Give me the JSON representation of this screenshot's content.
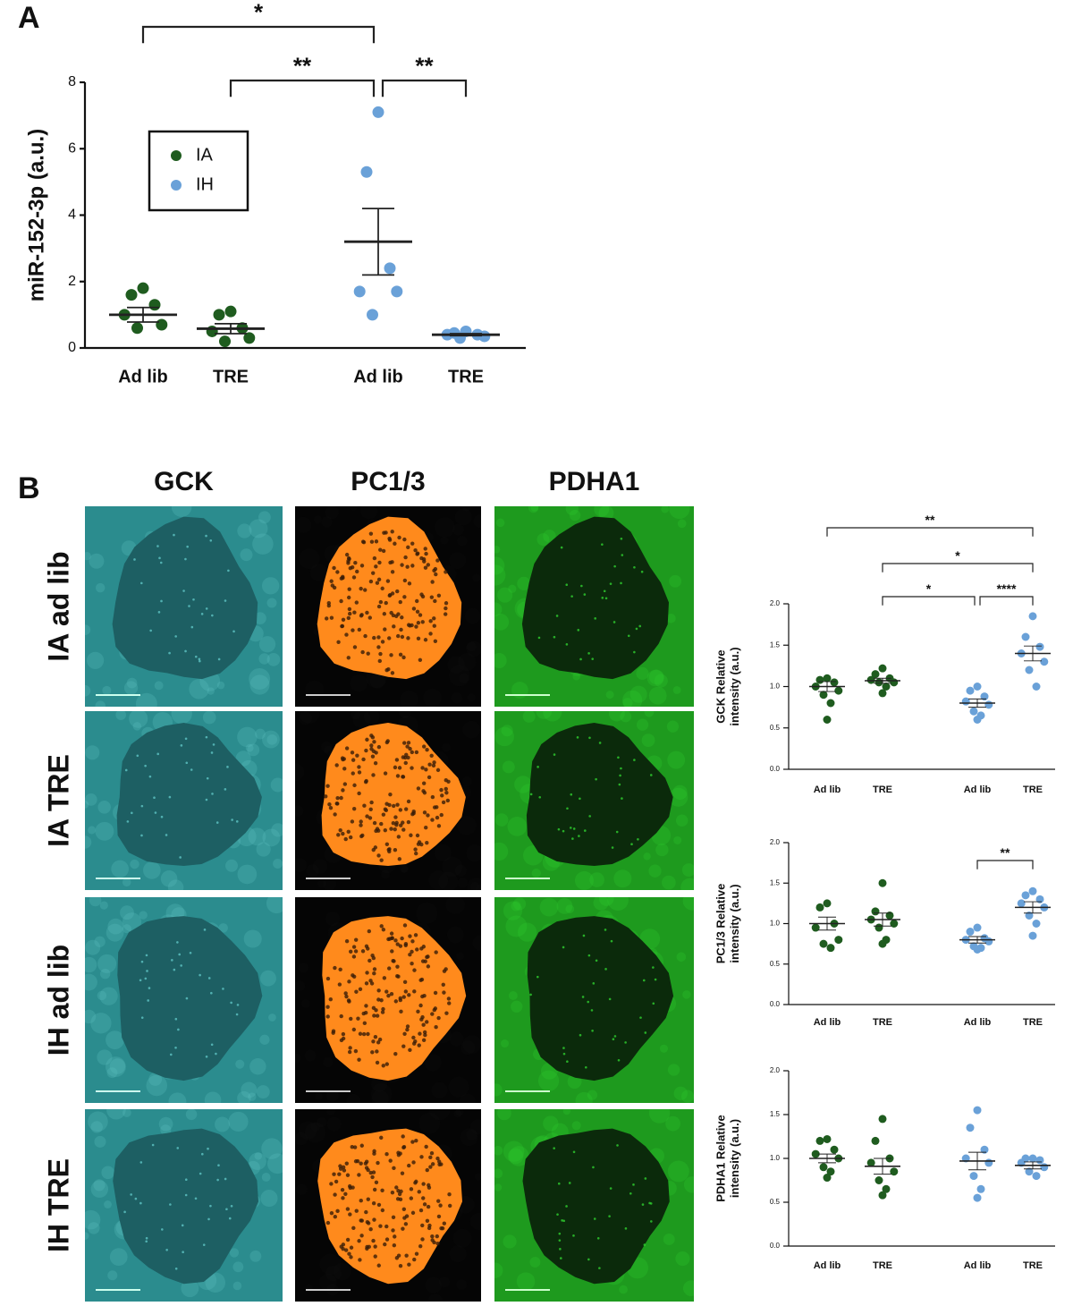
{
  "figure": {
    "panel_labels": [
      "A",
      "B"
    ],
    "image_columns": [
      "GCK",
      "PC1/3",
      "PDHA1"
    ],
    "image_rows": [
      "IA ad lib",
      "IA TRE",
      "IH ad lib",
      "IH TRE"
    ]
  },
  "chart_data": [
    {
      "type": "dot_plot",
      "ylabel": [
        "miR-152-3p (a.u.)"
      ],
      "categories": [
        "Ad lib",
        "TRE",
        "Ad lib",
        "TRE"
      ],
      "ylim": [
        0,
        8
      ],
      "yticks": [
        0,
        2,
        4,
        6,
        8
      ],
      "legend": "upper left",
      "series": [
        {
          "name": "IA",
          "color": "#1f5c1f",
          "groups": [
            {
              "category": 0,
              "points": [
                1.8,
                1.6,
                1.3,
                1.0,
                0.7,
                0.6
              ],
              "mean": 1.0,
              "sem": 0.22
            },
            {
              "category": 1,
              "points": [
                1.1,
                1.0,
                0.6,
                0.5,
                0.3,
                0.2
              ],
              "mean": 0.58,
              "sem": 0.15
            }
          ]
        },
        {
          "name": "IH",
          "color": "#6aa1d8",
          "groups": [
            {
              "category": 2,
              "points": [
                7.1,
                5.3,
                2.4,
                1.7,
                1.7,
                1.0
              ],
              "mean": 3.2,
              "sem": 1.0
            },
            {
              "category": 3,
              "points": [
                0.5,
                0.45,
                0.4,
                0.4,
                0.35,
                0.3
              ],
              "mean": 0.4,
              "sem": 0.03
            }
          ]
        }
      ],
      "brackets": [
        {
          "from": 0,
          "to": 2,
          "label": "*"
        },
        {
          "from": 1,
          "to": 2,
          "label": "**"
        },
        {
          "from": 2,
          "to": 3,
          "label": "**"
        }
      ]
    },
    {
      "type": "dot_plot",
      "ylabel": [
        "GCK Relative",
        "intensity (a.u.)"
      ],
      "categories": [
        "Ad lib",
        "TRE",
        "Ad lib",
        "TRE"
      ],
      "ylim": [
        0,
        2
      ],
      "yticks": [
        {
          "value": 0,
          "label": "0.0"
        },
        0.5,
        {
          "value": 1,
          "label": "1.0"
        },
        1.5,
        {
          "value": 2,
          "label": "2.0"
        }
      ],
      "series": [
        {
          "color": "#1f5c1f",
          "groups": [
            {
              "category": 0,
              "points": [
                1.1,
                1.08,
                1.05,
                1.0,
                0.95,
                0.9,
                0.8,
                0.6
              ],
              "mean": 1.0,
              "sem": 0.06
            },
            {
              "category": 1,
              "points": [
                1.22,
                1.15,
                1.1,
                1.08,
                1.05,
                1.05,
                1.0,
                0.92
              ],
              "mean": 1.07,
              "sem": 0.03
            }
          ]
        },
        {
          "color": "#6aa1d8",
          "groups": [
            {
              "category": 2,
              "points": [
                1.0,
                0.95,
                0.88,
                0.82,
                0.78,
                0.7,
                0.65,
                0.6
              ],
              "mean": 0.8,
              "sem": 0.05
            },
            {
              "category": 3,
              "points": [
                1.85,
                1.6,
                1.48,
                1.4,
                1.3,
                1.2,
                1.0
              ],
              "mean": 1.4,
              "sem": 0.09
            }
          ]
        }
      ],
      "brackets": [
        {
          "from": 0,
          "to": 3,
          "label": "**"
        },
        {
          "from": 1,
          "to": 3,
          "label": "*"
        },
        {
          "from": 1,
          "to": 2,
          "label": "*"
        },
        {
          "from": 2,
          "to": 3,
          "label": "****"
        }
      ]
    },
    {
      "type": "dot_plot",
      "ylabel": [
        "PC1/3 Relative",
        "intensity (a.u.)"
      ],
      "categories": [
        "Ad lib",
        "TRE",
        "Ad lib",
        "TRE"
      ],
      "ylim": [
        0,
        2
      ],
      "yticks": [
        {
          "value": 0,
          "label": "0.0"
        },
        0.5,
        {
          "value": 1,
          "label": "1.0"
        },
        1.5,
        {
          "value": 2,
          "label": "2.0"
        }
      ],
      "series": [
        {
          "color": "#1f5c1f",
          "groups": [
            {
              "category": 0,
              "points": [
                1.25,
                1.2,
                1.0,
                0.95,
                0.8,
                0.75,
                0.7
              ],
              "mean": 1.0,
              "sem": 0.08
            },
            {
              "category": 1,
              "points": [
                1.5,
                1.15,
                1.1,
                1.05,
                1.0,
                0.95,
                0.8,
                0.75
              ],
              "mean": 1.05,
              "sem": 0.08
            }
          ]
        },
        {
          "color": "#6aa1d8",
          "groups": [
            {
              "category": 2,
              "points": [
                0.95,
                0.9,
                0.82,
                0.8,
                0.78,
                0.72,
                0.7,
                0.68
              ],
              "mean": 0.8,
              "sem": 0.04
            },
            {
              "category": 3,
              "points": [
                1.4,
                1.35,
                1.3,
                1.25,
                1.2,
                1.1,
                1.0,
                0.85
              ],
              "mean": 1.2,
              "sem": 0.07
            }
          ]
        }
      ],
      "brackets": [
        {
          "from": 2,
          "to": 3,
          "label": "**"
        }
      ]
    },
    {
      "type": "dot_plot",
      "ylabel": [
        "PDHA1 Relative",
        "intensity (a.u.)"
      ],
      "categories": [
        "Ad lib",
        "TRE",
        "Ad lib",
        "TRE"
      ],
      "ylim": [
        0,
        2
      ],
      "yticks": [
        {
          "value": 0,
          "label": "0.0"
        },
        0.5,
        {
          "value": 1,
          "label": "1.0"
        },
        1.5,
        {
          "value": 2,
          "label": "2.0"
        }
      ],
      "series": [
        {
          "color": "#1f5c1f",
          "groups": [
            {
              "category": 0,
              "points": [
                1.22,
                1.2,
                1.1,
                1.05,
                1.0,
                0.9,
                0.85,
                0.78
              ],
              "mean": 1.0,
              "sem": 0.05
            },
            {
              "category": 1,
              "points": [
                1.45,
                1.2,
                1.0,
                0.95,
                0.85,
                0.75,
                0.65,
                0.58
              ],
              "mean": 0.91,
              "sem": 0.09
            }
          ]
        },
        {
          "color": "#6aa1d8",
          "groups": [
            {
              "category": 2,
              "points": [
                1.55,
                1.35,
                1.1,
                1.0,
                0.95,
                0.8,
                0.65,
                0.55
              ],
              "mean": 0.97,
              "sem": 0.1
            },
            {
              "category": 3,
              "points": [
                1.0,
                1.0,
                0.98,
                0.95,
                0.9,
                0.85,
                0.8
              ],
              "mean": 0.92,
              "sem": 0.04
            }
          ]
        }
      ],
      "brackets": []
    }
  ]
}
